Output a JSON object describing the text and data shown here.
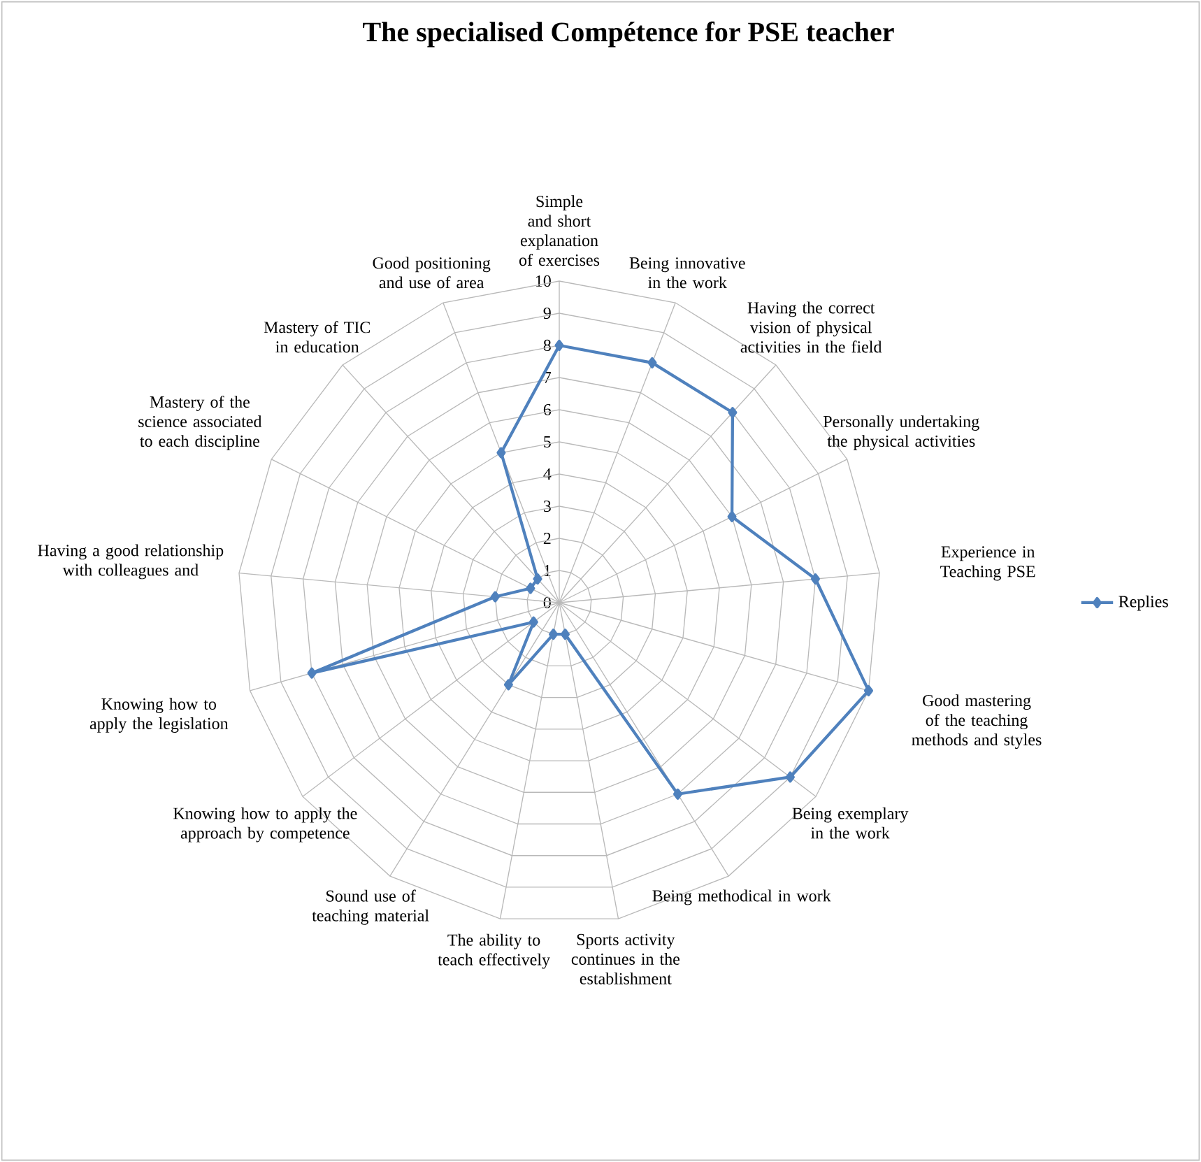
{
  "chart_data": {
    "type": "radar",
    "title": "The specialised Compétence for PSE teacher",
    "categories": [
      "Simple and short explanation of exercises",
      "Being innovative in the work",
      "Having the correct vision of physical activities in the field",
      "Personally undertaking the physical activities",
      "Experience in Teaching PSE",
      "Good mastering of the teaching methods and styles",
      "Being exemplary in the work",
      "Being methodical in work",
      "Sports activity continues in the establishment",
      "The ability to teach effectively",
      "Sound use of teaching material",
      "Knowing how to apply the approach by competence",
      "Knowing how to apply the legislation",
      "Having a good relationship with colleagues and",
      "Mastery of the science associated to each discipline",
      "Mastery of TIC in education",
      "Good positioning and use of area"
    ],
    "series": [
      {
        "name": "Replies",
        "color": "#4f81bd",
        "values": [
          8,
          8,
          8,
          6,
          8,
          10,
          9,
          7,
          1,
          1,
          3,
          1,
          8,
          2,
          1,
          1,
          5
        ]
      }
    ],
    "ylim": [
      0,
      10
    ],
    "yticks": [
      0,
      1,
      2,
      3,
      4,
      5,
      6,
      7,
      8,
      9,
      10
    ],
    "grid": true,
    "legend": "right",
    "marker": "diamond"
  }
}
